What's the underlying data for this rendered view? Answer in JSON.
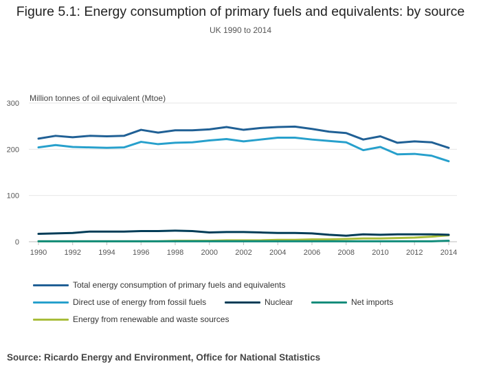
{
  "title": "Figure 5.1: Energy consumption of primary fuels and equivalents: by source",
  "subtitle": "UK 1990 to 2014",
  "source": "Source: Ricardo Energy and Environment, Office for National Statistics",
  "chart_data": {
    "type": "line",
    "title": "Figure 5.1: Energy consumption of primary fuels and equivalents: by source",
    "subtitle": "UK 1990 to 2014",
    "xlabel": "",
    "ylabel": "Million tonnes of oil equivalent (Mtoe)",
    "ylim": [
      0,
      300
    ],
    "xlim": [
      1990,
      2014
    ],
    "yticks": [
      0,
      100,
      200,
      300
    ],
    "xticks": [
      1990,
      1992,
      1994,
      1996,
      1998,
      2000,
      2002,
      2004,
      2006,
      2008,
      2010,
      2012,
      2014
    ],
    "grid": true,
    "legend_position": "bottom",
    "x": [
      1990,
      1991,
      1992,
      1993,
      1994,
      1995,
      1996,
      1997,
      1998,
      1999,
      2000,
      2001,
      2002,
      2003,
      2004,
      2005,
      2006,
      2007,
      2008,
      2009,
      2010,
      2011,
      2012,
      2013,
      2014
    ],
    "series": [
      {
        "name": "Total energy consumption of primary fuels and equivalents",
        "color": "#206095",
        "values": [
          223,
          229,
          226,
          229,
          228,
          229,
          242,
          236,
          241,
          241,
          243,
          248,
          242,
          246,
          248,
          249,
          244,
          238,
          235,
          221,
          228,
          214,
          217,
          215,
          203
        ]
      },
      {
        "name": "Direct use of energy from fossil fuels",
        "color": "#27A0CC",
        "values": [
          204,
          209,
          205,
          204,
          203,
          204,
          216,
          211,
          214,
          215,
          219,
          222,
          217,
          221,
          225,
          225,
          221,
          218,
          215,
          198,
          205,
          189,
          190,
          186,
          174
        ]
      },
      {
        "name": "Nuclear",
        "color": "#003C57",
        "values": [
          17,
          18,
          19,
          22,
          22,
          22,
          23,
          23,
          24,
          23,
          20,
          21,
          21,
          20,
          19,
          19,
          18,
          15,
          13,
          16,
          15,
          16,
          16,
          16,
          15
        ]
      },
      {
        "name": "Net imports",
        "color": "#118C7B",
        "values": [
          1,
          1,
          1,
          1,
          1,
          1,
          1,
          1,
          1,
          1,
          1,
          1,
          1,
          1,
          1,
          1,
          1,
          1,
          1,
          1,
          1,
          1,
          1,
          1,
          2
        ]
      },
      {
        "name": "Energy from renewable and waste sources",
        "color": "#A8BD3A",
        "values": [
          1,
          1,
          1,
          1,
          1,
          1,
          1,
          1,
          2,
          2,
          2,
          3,
          3,
          3,
          4,
          4,
          5,
          5,
          6,
          7,
          7,
          8,
          9,
          11,
          14
        ]
      }
    ]
  }
}
